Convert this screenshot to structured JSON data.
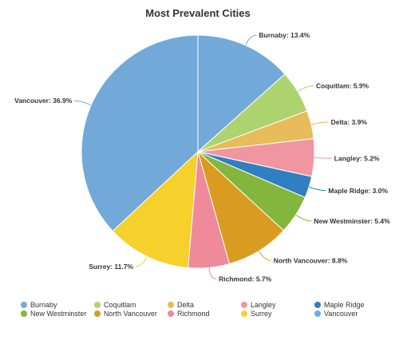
{
  "chart_data": {
    "type": "pie",
    "title": "Most Prevalent Cities",
    "slices": [
      {
        "label": "Burnaby",
        "value": 13.4,
        "color": "#72a9d8"
      },
      {
        "label": "Coquitlam",
        "value": 5.9,
        "color": "#add36f"
      },
      {
        "label": "Delta",
        "value": 3.9,
        "color": "#e7bc5a"
      },
      {
        "label": "Langley",
        "value": 5.2,
        "color": "#ef96a1"
      },
      {
        "label": "Maple Ridge",
        "value": 3.0,
        "color": "#2f7fc1"
      },
      {
        "label": "New Westminster",
        "value": 5.4,
        "color": "#84b53d"
      },
      {
        "label": "North Vancouver",
        "value": 8.8,
        "color": "#d99c20"
      },
      {
        "label": "Richmond",
        "value": 5.7,
        "color": "#ef8a9b"
      },
      {
        "label": "Surrey",
        "value": 11.7,
        "color": "#f6d02b"
      },
      {
        "label": "Vancouver",
        "value": 36.9,
        "color": "#72a9d8"
      }
    ],
    "legend_placement": "bottom"
  }
}
